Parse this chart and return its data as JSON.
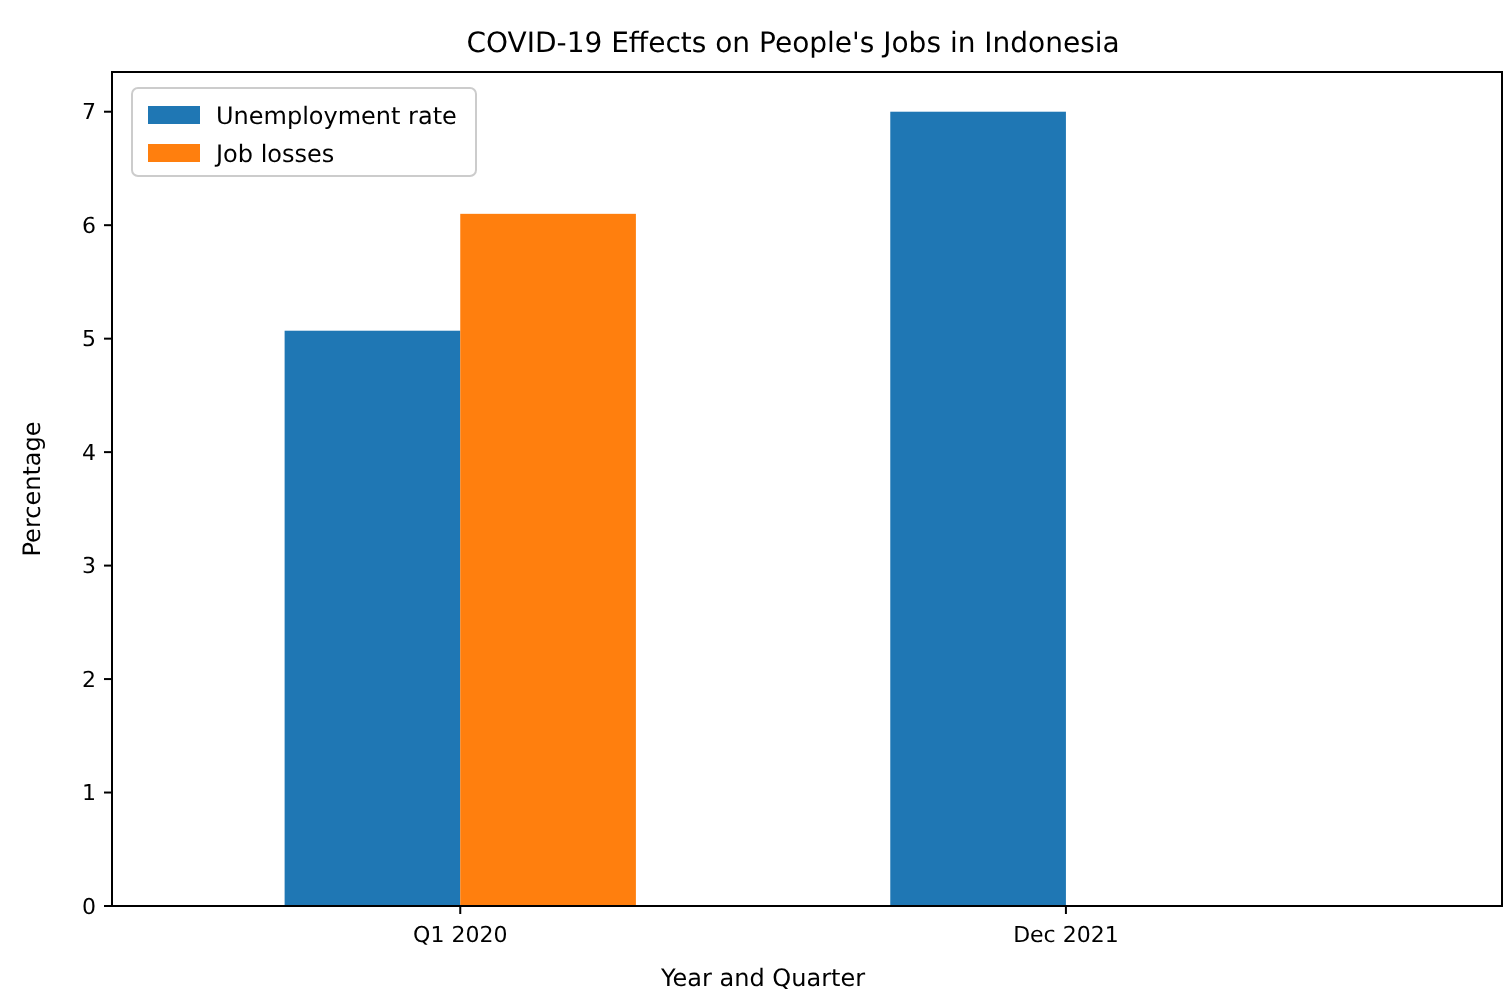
{
  "chart_data": {
    "type": "bar",
    "title": "COVID-19 Effects on People's Jobs in Indonesia",
    "xlabel": "Year and Quarter",
    "ylabel": "Percentage",
    "categories": [
      "Q1 2020",
      "Dec 2021"
    ],
    "series": [
      {
        "name": "Unemployment rate",
        "color": "#1f77b4",
        "values": [
          5.07,
          7.0
        ]
      },
      {
        "name": "Job losses",
        "color": "#ff7f0e",
        "values": [
          6.1,
          null
        ]
      }
    ],
    "ylim": [
      0,
      7.35
    ],
    "yticks": [
      0,
      1,
      2,
      3,
      4,
      5,
      6,
      7
    ],
    "grid": false,
    "legend": "top left"
  }
}
